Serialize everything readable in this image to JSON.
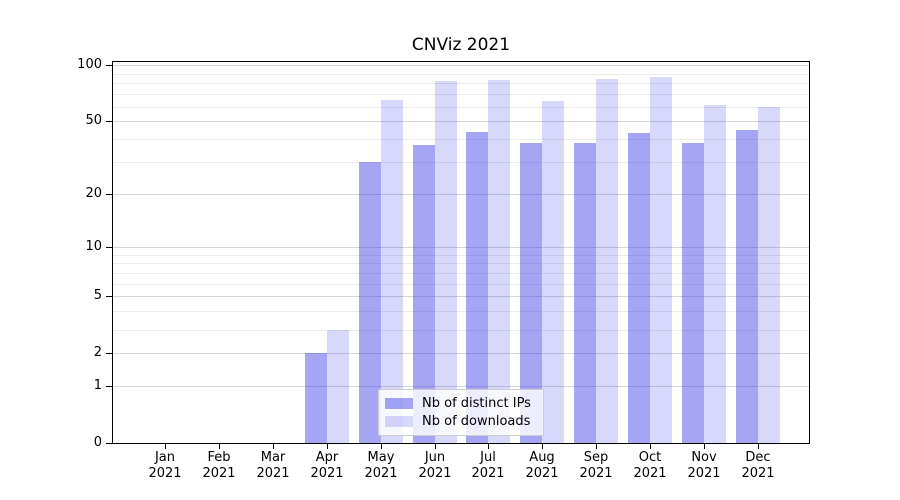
{
  "chart_data": {
    "type": "bar",
    "title": "CNViz 2021",
    "categories": [
      "Jan 2021",
      "Feb 2021",
      "Mar 2021",
      "Apr 2021",
      "May 2021",
      "Jun 2021",
      "Jul 2021",
      "Aug 2021",
      "Sep 2021",
      "Oct 2021",
      "Nov 2021",
      "Dec 2021"
    ],
    "series": [
      {
        "name": "Nb of distinct IPs",
        "color": "rgba(58,58,232,0.46)",
        "values": [
          0,
          0,
          0,
          2,
          30,
          37,
          44,
          38,
          38,
          43,
          38,
          45
        ]
      },
      {
        "name": "Nb of downloads",
        "color": "rgba(58,58,232,0.20)",
        "values": [
          0,
          0,
          0,
          3,
          65,
          82,
          83,
          64,
          84,
          87,
          61,
          60
        ]
      }
    ],
    "xlabel": "",
    "ylabel": "",
    "yscale": "log1p",
    "ylim": [
      0,
      105
    ],
    "yticks": [
      0,
      1,
      2,
      5,
      10,
      20,
      50,
      100
    ],
    "minor_yticks": [
      3,
      4,
      6,
      7,
      8,
      9,
      30,
      40,
      60,
      70,
      80,
      90
    ],
    "grid": true,
    "legend_position": "lower center",
    "colors": {
      "grid_major": "#d6d6d6",
      "grid_minor": "#ebebeb",
      "axis": "#000000",
      "background": "#ffffff"
    }
  }
}
